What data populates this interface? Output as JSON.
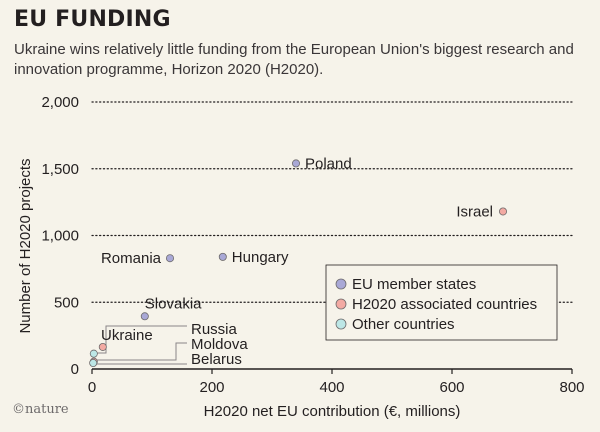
{
  "header": {
    "title": "EU FUNDING",
    "subtitle": "Ukraine wins relatively little funding from the European Union's biggest research and innovation programme, Horizon 2020 (H2020)."
  },
  "credit": "©nature",
  "colors": {
    "background": "#f6f3ea",
    "eu_member": "#a9a8d6",
    "associated": "#f3aaa3",
    "other": "#bde7e6",
    "point_stroke": "#6d6a6b",
    "grid": "#231f20",
    "text": "#231f20"
  },
  "chart_data": {
    "type": "scatter",
    "xlabel": "H2020 net EU contribution (€, millions)",
    "ylabel": "Number of H2020 projects",
    "xlim": [
      0,
      800
    ],
    "ylim": [
      0,
      2000
    ],
    "xticks": [
      0,
      200,
      400,
      600,
      800
    ],
    "yticks": [
      0,
      500,
      1000,
      1500,
      2000
    ],
    "xtick_labels": [
      "0",
      "200",
      "400",
      "600",
      "800"
    ],
    "ytick_labels": [
      "0",
      "500",
      "1,000",
      "1,500",
      "2,000"
    ],
    "grid": "horizontal dotted",
    "legend_position": "bottom-right",
    "series": [
      {
        "name": "EU member states",
        "color": "#a9a8d6",
        "points": [
          {
            "label": "Poland",
            "x": 340,
            "y": 1540
          },
          {
            "label": "Romania",
            "x": 130,
            "y": 830
          },
          {
            "label": "Hungary",
            "x": 218,
            "y": 840
          },
          {
            "label": "Slovakia",
            "x": 88,
            "y": 395
          }
        ]
      },
      {
        "name": "H2020 associated countries",
        "color": "#f3aaa3",
        "points": [
          {
            "label": "Israel",
            "x": 685,
            "y": 1180
          },
          {
            "label": "Ukraine",
            "x": 18,
            "y": 165
          },
          {
            "label": "Moldova",
            "x": 3,
            "y": 55
          }
        ]
      },
      {
        "name": "Other countries",
        "color": "#bde7e6",
        "points": [
          {
            "label": "Russia",
            "x": 3,
            "y": 115
          },
          {
            "label": "Belarus",
            "x": 2,
            "y": 45
          }
        ]
      }
    ]
  }
}
